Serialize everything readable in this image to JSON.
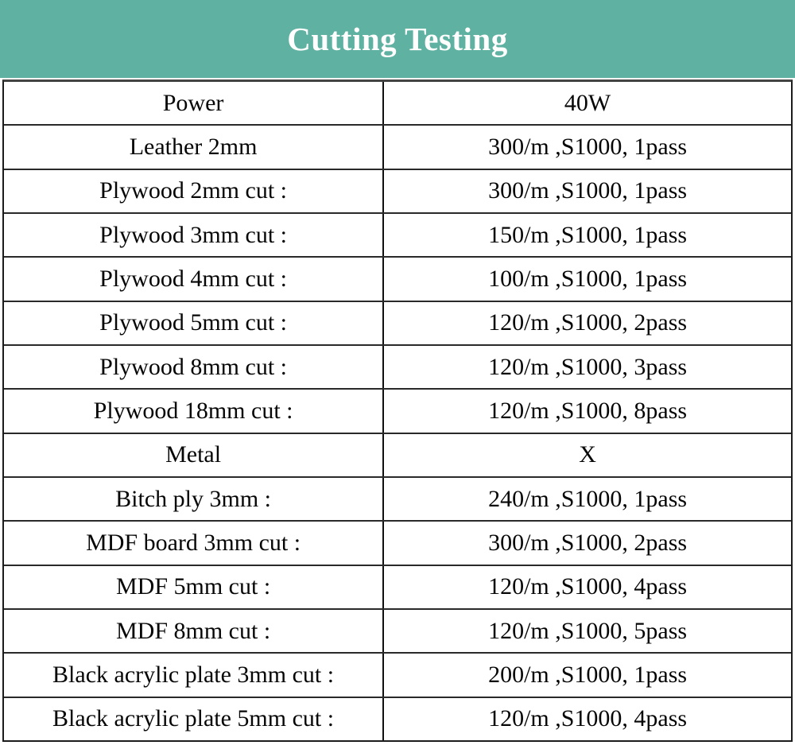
{
  "banner": {
    "title": "Cutting Testing",
    "background": "#5FB1A2",
    "text_color": "#FFFFFF"
  },
  "table": {
    "border_color": "#1C1C1C",
    "rows": [
      {
        "label": "Power",
        "value": "40W"
      },
      {
        "label": "Leather 2mm",
        "value": "300/m ,S1000, 1pass"
      },
      {
        "label": "Plywood 2mm cut :",
        "value": "300/m ,S1000, 1pass"
      },
      {
        "label": "Plywood 3mm cut :",
        "value": "150/m ,S1000, 1pass"
      },
      {
        "label": "Plywood 4mm cut :",
        "value": "100/m ,S1000, 1pass"
      },
      {
        "label": "Plywood 5mm cut :",
        "value": "120/m ,S1000, 2pass"
      },
      {
        "label": "Plywood 8mm cut :",
        "value": "120/m ,S1000, 3pass"
      },
      {
        "label": "Plywood 18mm cut :",
        "value": "120/m ,S1000, 8pass"
      },
      {
        "label": "Metal",
        "value": "X"
      },
      {
        "label": "Bitch ply 3mm :",
        "value": "240/m ,S1000, 1pass"
      },
      {
        "label": "MDF board 3mm cut :",
        "value": "300/m ,S1000, 2pass"
      },
      {
        "label": "MDF 5mm cut :",
        "value": "120/m ,S1000, 4pass"
      },
      {
        "label": "MDF 8mm cut :",
        "value": "120/m ,S1000, 5pass"
      },
      {
        "label": "Black acrylic plate 3mm cut :",
        "value": "200/m ,S1000, 1pass"
      },
      {
        "label": "Black acrylic plate 5mm cut :",
        "value": "120/m ,S1000, 4pass"
      }
    ]
  }
}
